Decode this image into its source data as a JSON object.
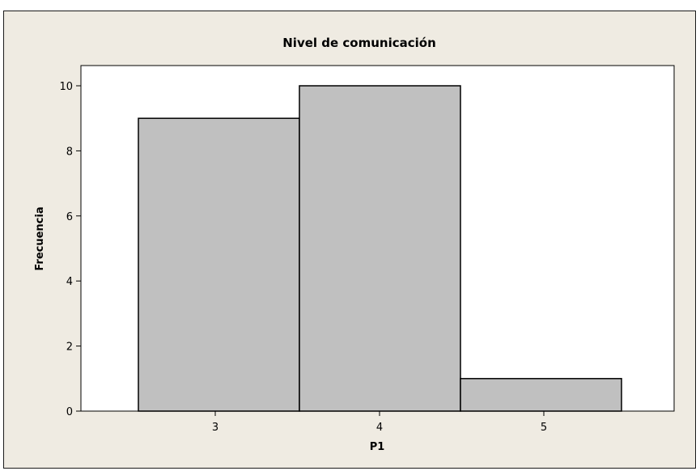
{
  "chart_data": {
    "type": "bar",
    "title": "Nivel de comunicación",
    "xlabel": "P1",
    "ylabel": "Frecuencia",
    "categories": [
      "3",
      "4",
      "5"
    ],
    "values": [
      9,
      10,
      1
    ],
    "ylim": [
      0,
      10.5
    ],
    "yticks": [
      "0",
      "2",
      "4",
      "6",
      "8",
      "10"
    ],
    "grid": false,
    "legend": "none",
    "colors": {
      "figure_background": "#efebe2",
      "plot_background": "#ffffff",
      "bar_fill": "#c0c0c0",
      "bar_stroke": "#000000"
    }
  }
}
